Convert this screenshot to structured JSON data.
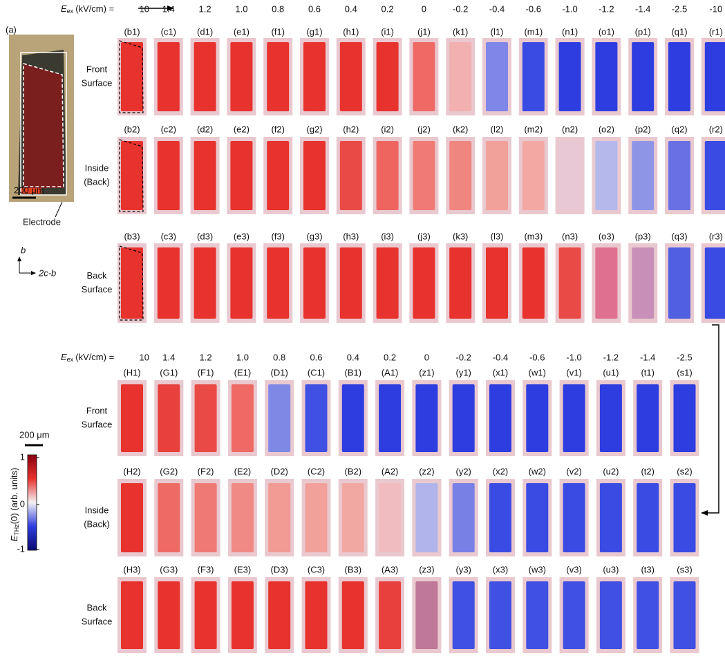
{
  "figure": {
    "panel_a": {
      "label": "(a)",
      "scale": "200 μm",
      "electrode": "Electrode",
      "axis_up": "b",
      "axis_right": "2c-b"
    },
    "field_label": {
      "symbol": "E",
      "subscript": "ex",
      "unit": "(kV/cm) ="
    },
    "colorbar": {
      "ticks": [
        "1",
        "0",
        "-1"
      ],
      "label_symbol": "E",
      "label_sub": "THz",
      "label_rest": "(0) (arb. units)",
      "scale": "200 μm"
    },
    "blocks": [
      {
        "fields": [
          "10",
          "1.4",
          "1.2",
          "1.0",
          "0.8",
          "0.6",
          "0.4",
          "0.2",
          "0",
          "-0.2",
          "-0.4",
          "-0.6",
          "-1.0",
          "-1.2",
          "-1.4",
          "-2.5",
          "-10"
        ],
        "rows": [
          {
            "name_lines": [
              "Front",
              "Surface"
            ],
            "panels": [
              "(b1)",
              "(c1)",
              "(d1)",
              "(e1)",
              "(f1)",
              "(g1)",
              "(h1)",
              "(i1)",
              "(j1)",
              "(k1)",
              "(l1)",
              "(m1)",
              "(n1)",
              "(o1)",
              "(p1)",
              "(q1)",
              "(r1)"
            ],
            "colors": [
              "#e8322e",
              "#e8322e",
              "#e8322e",
              "#e8322e",
              "#e8322e",
              "#e8322e",
              "#e8322e",
              "#e8322e",
              "#ef6a64",
              "#f2b0b0",
              "#7f86e8",
              "#3a4be4",
              "#2e3de0",
              "#2e3de0",
              "#2e3de0",
              "#2e3de0",
              "#2e3de0"
            ]
          },
          {
            "name_lines": [
              "Inside",
              "(Back)"
            ],
            "panels": [
              "(b2)",
              "(c2)",
              "(d2)",
              "(e2)",
              "(f2)",
              "(g2)",
              "(h2)",
              "(i2)",
              "(j2)",
              "(k2)",
              "(l2)",
              "(m2)",
              "(n2)",
              "(o2)",
              "(p2)",
              "(q2)",
              "(r2)"
            ],
            "colors": [
              "#e8322e",
              "#e8322e",
              "#e8322e",
              "#e8322e",
              "#e8322e",
              "#e8322e",
              "#ea4a45",
              "#ee6560",
              "#f07a74",
              "#f08680",
              "#f2a09a",
              "#f4a8a4",
              "#e8c8d4",
              "#b4b8ea",
              "#8f95e6",
              "#6870e4",
              "#3a4be4"
            ]
          },
          {
            "name_lines": [
              "Back",
              "Surface"
            ],
            "panels": [
              "(b3)",
              "(c3)",
              "(d3)",
              "(e3)",
              "(f3)",
              "(g3)",
              "(h3)",
              "(i3)",
              "(j3)",
              "(k3)",
              "(l3)",
              "(m3)",
              "(n3)",
              "(o3)",
              "(p3)",
              "(q3)",
              "(r3)"
            ],
            "colors": [
              "#e8322e",
              "#e8322e",
              "#e8322e",
              "#e8322e",
              "#e8322e",
              "#e8322e",
              "#e8322e",
              "#e8322e",
              "#e8322e",
              "#e8322e",
              "#e8322e",
              "#e8322e",
              "#ea4a45",
              "#e07090",
              "#c890b8",
              "#5060e0",
              "#3a4be4"
            ]
          }
        ]
      },
      {
        "fields": [
          "10",
          "1.4",
          "1.2",
          "1.0",
          "0.8",
          "0.6",
          "0.4",
          "0.2",
          "0",
          "-0.2",
          "-0.4",
          "-0.6",
          "-1.0",
          "-1.2",
          "-1.4",
          "-2.5"
        ],
        "rows": [
          {
            "name_lines": [
              "Front",
              "Surface"
            ],
            "panels": [
              "(H1)",
              "(G1)",
              "(F1)",
              "(E1)",
              "(D1)",
              "(C1)",
              "(B1)",
              "(A1)",
              "(z1)",
              "(y1)",
              "(x1)",
              "(w1)",
              "(v1)",
              "(u1)",
              "(t1)",
              "(s1)"
            ],
            "colors": [
              "#e8322e",
              "#e8403c",
              "#ea4a45",
              "#ef6a64",
              "#8088e6",
              "#4050e2",
              "#2e3de0",
              "#2e3de0",
              "#2e3de0",
              "#2e3de0",
              "#2e3de0",
              "#2e3de0",
              "#2e3de0",
              "#2e3de0",
              "#2e3de0",
              "#2e3de0"
            ]
          },
          {
            "name_lines": [
              "Inside",
              "(Back)"
            ],
            "panels": [
              "(H2)",
              "(G2)",
              "(F2)",
              "(E2)",
              "(D2)",
              "(C2)",
              "(B2)",
              "(A2)",
              "(z2)",
              "(y2)",
              "(x2)",
              "(w2)",
              "(v2)",
              "(u2)",
              "(t2)",
              "(s2)"
            ],
            "colors": [
              "#e8322e",
              "#ee6a64",
              "#ef7a74",
              "#f08a84",
              "#f29a94",
              "#f2a09a",
              "#f2a8a2",
              "#f0bcc0",
              "#b0b4ea",
              "#7880e6",
              "#3a4be4",
              "#3a4be4",
              "#3a4be4",
              "#3a4be4",
              "#3a4be4",
              "#3a4be4"
            ]
          },
          {
            "name_lines": [
              "Back",
              "Surface"
            ],
            "panels": [
              "(H3)",
              "(G3)",
              "(F3)",
              "(E3)",
              "(D3)",
              "(C3)",
              "(B3)",
              "(A3)",
              "(z3)",
              "(y3)",
              "(x3)",
              "(w3)",
              "(v3)",
              "(u3)",
              "(t3)",
              "(s3)"
            ],
            "colors": [
              "#e8322e",
              "#e8322e",
              "#e8322e",
              "#e8322e",
              "#e8322e",
              "#e8322e",
              "#e8322e",
              "#e8403c",
              "#c07898",
              "#4050e2",
              "#4050e2",
              "#4050e2",
              "#4050e2",
              "#4050e2",
              "#4050e2",
              "#4050e2"
            ]
          }
        ]
      }
    ]
  }
}
